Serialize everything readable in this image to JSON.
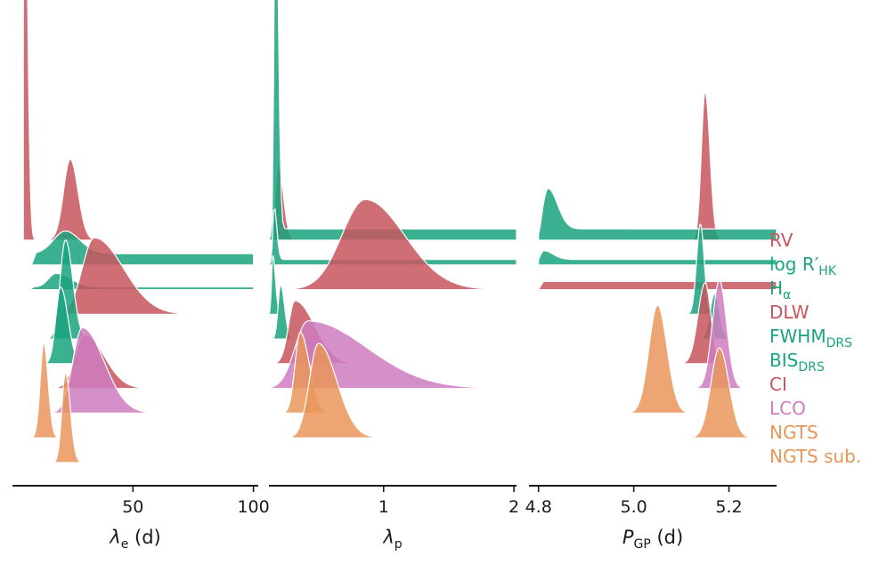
{
  "chart_data": {
    "type": "area",
    "title": "",
    "colors": {
      "red": "#c8555d",
      "green": "#1aa37f",
      "pink": "#cf7cbf",
      "orange": "#e9955a"
    },
    "legend": {
      "placement": "right",
      "entries": [
        {
          "base": "RV",
          "sub": "",
          "color": "#c8555d"
        },
        {
          "base": "log R′",
          "sub": "HK",
          "color": "#1aa37f"
        },
        {
          "base": "H",
          "sub": "α",
          "color": "#1aa37f"
        },
        {
          "base": "DLW",
          "sub": "",
          "color": "#c8555d"
        },
        {
          "base": "FWHM",
          "sub": "DRS",
          "color": "#1aa37f"
        },
        {
          "base": "BIS",
          "sub": "DRS",
          "color": "#1aa37f"
        },
        {
          "base": "CI",
          "sub": "",
          "color": "#c8555d"
        },
        {
          "base": "LCO",
          "sub": "",
          "color": "#cf7cbf"
        },
        {
          "base": "NGTS",
          "sub": "",
          "color": "#e9955a"
        },
        {
          "base": "NGTS sub.",
          "sub": "",
          "color": "#e9955a"
        }
      ]
    },
    "panels": [
      {
        "id": "lambda_e",
        "xlabel": {
          "base": "λ",
          "sub": "e",
          "suffix": " (d)"
        },
        "xlim": [
          0,
          102
        ],
        "ticks": [
          50,
          100
        ],
        "tick_labels": [
          "50",
          "100"
        ],
        "series": [
          {
            "name": "RV",
            "color": "#c8555d",
            "shape": "peak",
            "mode": 5,
            "width_left": 0.4,
            "width_right": 1.2,
            "height": 0.97,
            "floor": 0,
            "range": [
              4.5,
              12
            ]
          },
          {
            "name": "RV (broad)",
            "color": "#c8555d",
            "shape": "peak",
            "mode": 24,
            "width_left": 2.8,
            "width_right": 3.2,
            "height": 0.18,
            "floor": 0,
            "range": [
              12,
              38
            ]
          },
          {
            "name": "log R'HK",
            "color": "#1aa37f",
            "shape": "plateau",
            "mode": 22,
            "width_left": 5,
            "width_right": 6,
            "height": 0.05,
            "floor": 0.025,
            "range": [
              8,
              100
            ]
          },
          {
            "name": "H alpha",
            "color": "#1aa37f",
            "shape": "plateau",
            "mode": 18,
            "width_left": 3,
            "width_right": 6,
            "height": 0.03,
            "floor": 0.006,
            "range": [
              7,
              100
            ]
          },
          {
            "name": "DLW",
            "color": "#c8555d",
            "shape": "peak",
            "mode": 34,
            "width_left": 5,
            "width_right": 12,
            "height": 0.17,
            "floor": 0,
            "range": [
              18,
              100
            ]
          },
          {
            "name": "FWHM DRS",
            "color": "#1aa37f",
            "shape": "peak",
            "mode": 22,
            "width_left": 2.2,
            "width_right": 3,
            "height": 0.22,
            "floor": 0,
            "range": [
              8,
              40
            ]
          },
          {
            "name": "BIS DRS",
            "color": "#1aa37f",
            "shape": "peak",
            "mode": 20,
            "width_left": 2,
            "width_right": 3,
            "height": 0.17,
            "floor": 0,
            "range": [
              8,
              38
            ]
          },
          {
            "name": "CI",
            "color": "#c8555d",
            "shape": "peak",
            "mode": 30,
            "width_left": 4,
            "width_right": 8,
            "height": 0.12,
            "floor": 0,
            "range": [
              12,
              70
            ]
          },
          {
            "name": "LCO",
            "color": "#cf7cbf",
            "shape": "peak",
            "mode": 29,
            "width_left": 4,
            "width_right": 9,
            "height": 0.19,
            "floor": 0,
            "range": [
              8,
              100
            ]
          },
          {
            "name": "NGTS",
            "color": "#e9955a",
            "shape": "peak",
            "mode": 13,
            "width_left": 1.5,
            "width_right": 1.8,
            "height": 0.21,
            "floor": 0,
            "range": [
              8,
              20
            ]
          },
          {
            "name": "NGTS sub.",
            "color": "#e9955a",
            "shape": "peak",
            "mode": 22,
            "width_left": 1.5,
            "width_right": 2,
            "height": 0.2,
            "floor": 0,
            "range": [
              15,
              35
            ]
          }
        ]
      },
      {
        "id": "lambda_p",
        "xlabel": {
          "base": "λ",
          "sub": "p",
          "suffix": ""
        },
        "xlim": [
          0.12,
          2.02
        ],
        "ticks": [
          1,
          2
        ],
        "tick_labels": [
          "1",
          "2"
        ],
        "series": [
          {
            "name": "RV",
            "color": "#c8555d",
            "shape": "peak",
            "mode": 0.19,
            "width_left": 0.02,
            "width_right": 0.04,
            "height": 0.17,
            "floor": 0,
            "range": [
              0.14,
              0.35
            ]
          },
          {
            "name": "log R'HK",
            "color": "#1aa37f",
            "shape": "plateau",
            "mode": 0.17,
            "width_left": 0.01,
            "width_right": 0.02,
            "height": 0.91,
            "floor": 0.025,
            "range": [
              0.12,
              2.02
            ]
          },
          {
            "name": "H alpha",
            "color": "#1aa37f",
            "shape": "plateau",
            "mode": 0.16,
            "width_left": 0.01,
            "width_right": 0.02,
            "height": 0.12,
            "floor": 0.012,
            "range": [
              0.12,
              2.02
            ]
          },
          {
            "name": "DLW",
            "color": "#c8555d",
            "shape": "peak",
            "mode": 0.86,
            "width_left": 0.18,
            "width_right": 0.3,
            "height": 0.2,
            "floor": 0,
            "range": [
              0.3,
              2.02
            ]
          },
          {
            "name": "FWHM DRS",
            "color": "#1aa37f",
            "shape": "peak",
            "mode": 0.15,
            "width_left": 0.01,
            "width_right": 0.02,
            "height": 0.13,
            "floor": 0,
            "range": [
              0.12,
              0.3
            ]
          },
          {
            "name": "BIS DRS",
            "color": "#1aa37f",
            "shape": "peak",
            "mode": 0.21,
            "width_left": 0.02,
            "width_right": 0.03,
            "height": 0.12,
            "floor": 0,
            "range": [
              0.14,
              0.4
            ]
          },
          {
            "name": "CI",
            "color": "#c8555d",
            "shape": "peak",
            "mode": 0.32,
            "width_left": 0.05,
            "width_right": 0.15,
            "height": 0.14,
            "floor": 0,
            "range": [
              0.15,
              1.2
            ]
          },
          {
            "name": "LCO",
            "color": "#cf7cbf",
            "shape": "peak",
            "mode": 0.42,
            "width_left": 0.1,
            "width_right": 0.45,
            "height": 0.15,
            "floor": 0,
            "range": [
              0.12,
              2.02
            ]
          },
          {
            "name": "NGTS",
            "color": "#e9955a",
            "shape": "peak",
            "mode": 0.36,
            "width_left": 0.04,
            "width_right": 0.07,
            "height": 0.18,
            "floor": 0,
            "range": [
              0.2,
              0.7
            ]
          },
          {
            "name": "NGTS sub.",
            "color": "#e9955a",
            "shape": "peak",
            "mode": 0.5,
            "width_left": 0.07,
            "width_right": 0.14,
            "height": 0.21,
            "floor": 0,
            "range": [
              0.3,
              1.7
            ]
          }
        ]
      },
      {
        "id": "p_gp",
        "xlabel": {
          "base": "P",
          "sub": "GP",
          "suffix": " (d)"
        },
        "xlim": [
          4.78,
          5.3
        ],
        "ticks": [
          4.8,
          5.0,
          5.2
        ],
        "tick_labels": [
          "4.8",
          "5.0",
          "5.2"
        ],
        "series": [
          {
            "name": "RV",
            "color": "#c8555d",
            "shape": "peak",
            "mode": 5.15,
            "width_left": 0.008,
            "width_right": 0.01,
            "height": 0.33,
            "floor": 0,
            "range": [
              5.12,
              5.18
            ]
          },
          {
            "name": "log R'HK",
            "color": "#1aa37f",
            "shape": "plateau",
            "mode": 4.82,
            "width_left": 0.01,
            "width_right": 0.02,
            "height": 0.09,
            "floor": 0.025,
            "range": [
              4.8,
              5.3
            ]
          },
          {
            "name": "H alpha",
            "color": "#1aa37f",
            "shape": "plateau",
            "mode": 4.81,
            "width_left": 0.01,
            "width_right": 0.02,
            "height": 0.02,
            "floor": 0.012,
            "range": [
              4.8,
              5.3
            ]
          },
          {
            "name": "DLW",
            "color": "#c8555d",
            "shape": "plateau",
            "mode": 5.0,
            "width_left": 0.01,
            "width_right": 0.01,
            "height": 0,
            "floor": 0.018,
            "range": [
              4.8,
              5.3
            ]
          },
          {
            "name": "FWHM DRS",
            "color": "#1aa37f",
            "shape": "peak",
            "mode": 5.14,
            "width_left": 0.008,
            "width_right": 0.008,
            "height": 0.2,
            "floor": 0,
            "range": [
              5.09,
              5.2
            ]
          },
          {
            "name": "BIS DRS",
            "color": "#1aa37f",
            "shape": "peak",
            "mode": 5.17,
            "width_left": 0.01,
            "width_right": 0.01,
            "height": 0.1,
            "floor": 0,
            "range": [
              5.12,
              5.22
            ]
          },
          {
            "name": "CI",
            "color": "#c8555d",
            "shape": "peak",
            "mode": 5.15,
            "width_left": 0.015,
            "width_right": 0.012,
            "height": 0.18,
            "floor": 0,
            "range": [
              5.09,
              5.2
            ]
          },
          {
            "name": "LCO",
            "color": "#cf7cbf",
            "shape": "peak",
            "mode": 5.18,
            "width_left": 0.015,
            "width_right": 0.015,
            "height": 0.24,
            "floor": 0,
            "range": [
              4.9,
              5.26
            ]
          },
          {
            "name": "NGTS",
            "color": "#e9955a",
            "shape": "peak",
            "mode": 5.05,
            "width_left": 0.018,
            "width_right": 0.02,
            "height": 0.24,
            "floor": 0,
            "range": [
              4.92,
              5.12
            ]
          },
          {
            "name": "NGTS sub.",
            "color": "#e9955a",
            "shape": "peak",
            "mode": 5.18,
            "width_left": 0.018,
            "width_right": 0.02,
            "height": 0.2,
            "floor": 0,
            "range": [
              5.05,
              5.28
            ]
          }
        ]
      }
    ]
  }
}
